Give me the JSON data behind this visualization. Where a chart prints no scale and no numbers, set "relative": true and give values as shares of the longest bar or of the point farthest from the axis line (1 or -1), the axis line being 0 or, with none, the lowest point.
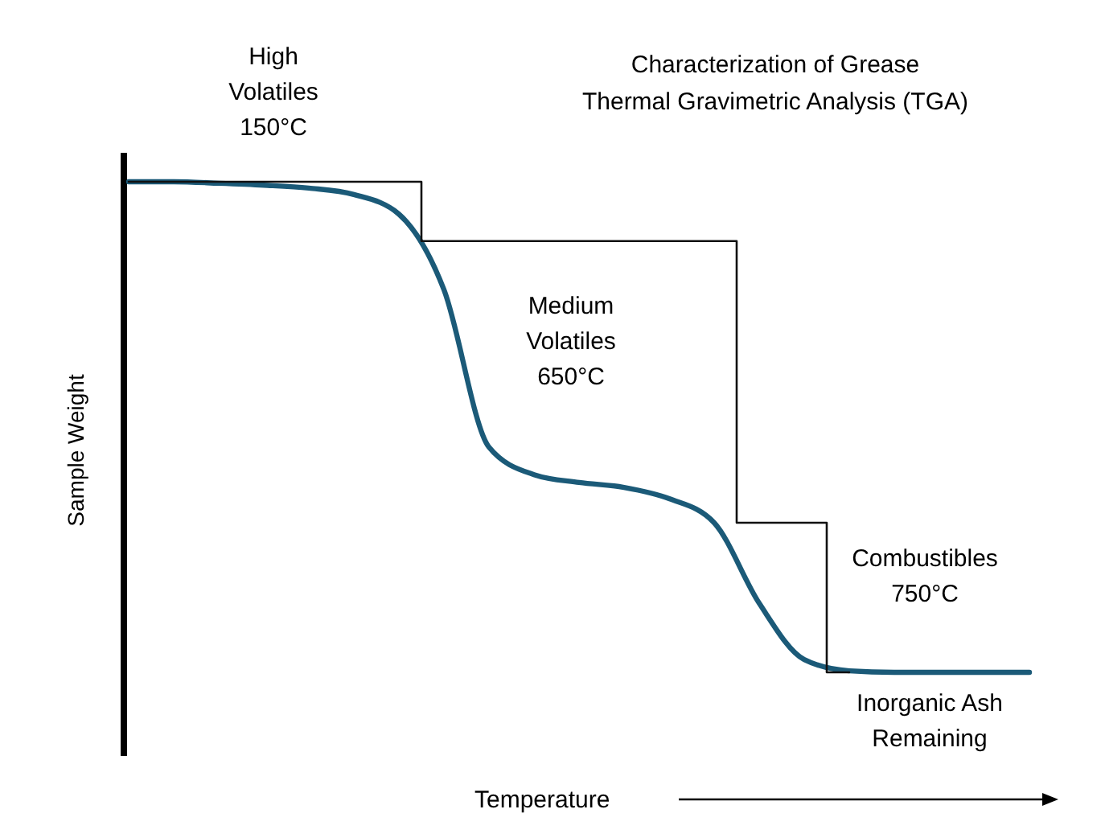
{
  "chart_data": {
    "type": "line",
    "relative": true,
    "title": "Characterization of Grease",
    "subtitle": "Thermal Gravimetric Analysis (TGA)",
    "xlabel": "Temperature",
    "ylabel": "Sample Weight",
    "categories": [
      null,
      null,
      null,
      null,
      null,
      null,
      null,
      null,
      null,
      null,
      null,
      null,
      null,
      null,
      null,
      null,
      null,
      null,
      null,
      null,
      null
    ],
    "annotations": [
      "High\nVolatiles\n150°C",
      "Medium\nVolatiles\n650°C",
      "Combustibles\n750°C",
      "Inorganic Ash\nRemaining"
    ],
    "series": [
      {
        "color": "#1b5a78",
        "values": [
          1,
          1,
          0.997,
          0.993,
          0.987,
          0.974,
          0.934,
          0.78,
          0.459,
          0.403,
          0.387,
          0.377,
          0.354,
          0.305,
          0.141,
          0.026,
          0.003,
          0,
          0,
          0,
          0
        ]
      },
      {
        "type": "step",
        "color": "#111111",
        "values": [
          1,
          1,
          1,
          1,
          1,
          1,
          1,
          0.879,
          0.879,
          0.879,
          0.879,
          0.879,
          0.879,
          0.879,
          0.305,
          0.305,
          0,
          null,
          null,
          null,
          null
        ]
      }
    ]
  }
}
